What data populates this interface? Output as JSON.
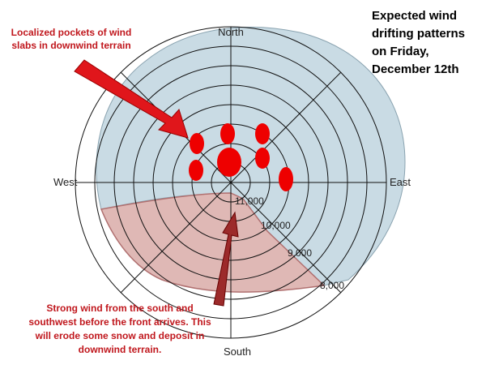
{
  "title_lines": [
    "Expected wind",
    "drifting patterns",
    "on Friday,",
    "December 12th"
  ],
  "top_note_lines": [
    "Localized pockets of wind",
    "slabs in downwind terrain"
  ],
  "bottom_note_lines": [
    "Strong wind from the south and",
    "southwest before the front arrives.  This",
    "will erode some snow and deposit in",
    "downwind terrain."
  ],
  "directions": {
    "north": "North",
    "south": "South",
    "east": "East",
    "west": "West"
  },
  "elevations": [
    "11,000",
    "10,000",
    "9,000",
    "8,000"
  ]
}
